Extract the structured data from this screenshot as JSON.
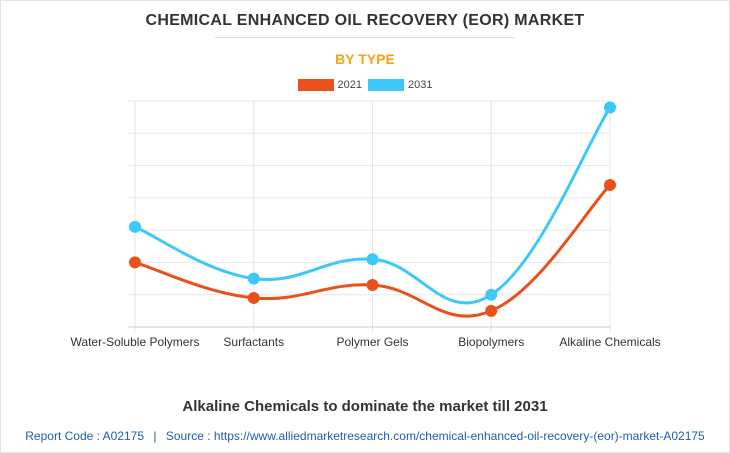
{
  "header": {
    "title": "CHEMICAL ENHANCED OIL RECOVERY (EOR) MARKET",
    "subtitle": "BY TYPE"
  },
  "chart_data": {
    "type": "line",
    "categories": [
      "Water-Soluble Polymers",
      "Surfactants",
      "Polymer Gels",
      "Biopolymers",
      "Alkaline Chemicals"
    ],
    "series": [
      {
        "name": "2021",
        "color": "#e8501c",
        "values": [
          2.0,
          0.9,
          1.3,
          0.5,
          4.4
        ]
      },
      {
        "name": "2031",
        "color": "#3ec8fa",
        "values": [
          3.1,
          1.5,
          2.1,
          1.0,
          6.8
        ]
      }
    ],
    "ylim": [
      0,
      7
    ],
    "grid": true,
    "y_tick_labels_shown": false,
    "legend": "top-center"
  },
  "caption": "Alkaline Chemicals to dominate the market till 2031",
  "footer": {
    "report_code": "Report Code : A02175",
    "separator": "|",
    "source": "Source : https://www.alliedmarketresearch.com/chemical-enhanced-oil-recovery-(eor)-market-A02175"
  }
}
